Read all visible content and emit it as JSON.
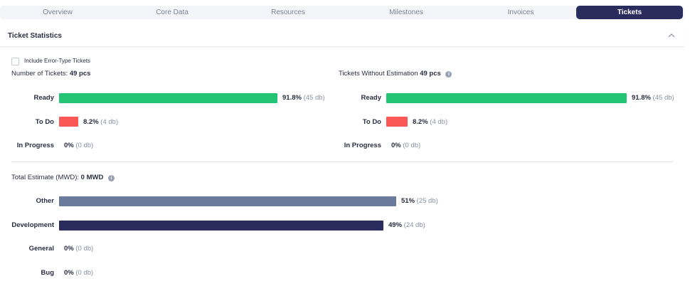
{
  "tabs": [
    {
      "label": "Overview",
      "active": false
    },
    {
      "label": "Core Data",
      "active": false
    },
    {
      "label": "Resources",
      "active": false
    },
    {
      "label": "Milestones",
      "active": false
    },
    {
      "label": "Invoices",
      "active": false
    },
    {
      "label": "Tickets",
      "active": true
    }
  ],
  "section": {
    "title": "Ticket Statistics",
    "collapse_icon": "chevron-up-icon"
  },
  "filter": {
    "checkbox_label": "Include Error-Type Tickets",
    "checked": false
  },
  "tickets": {
    "heading_label": "Number of Tickets:",
    "heading_value": "49 pcs",
    "rows": [
      {
        "label": "Ready",
        "pct": "91.8%",
        "count": "(45 db)",
        "fraction": 0.918,
        "color": "#22c473"
      },
      {
        "label": "To Do",
        "pct": "8.2%",
        "count": "(4 db)",
        "fraction": 0.082,
        "color": "#fb5757"
      },
      {
        "label": "In Progress",
        "pct": "0%",
        "count": "(0 db)",
        "fraction": 0,
        "color": "#22c473"
      }
    ]
  },
  "without_estimation": {
    "heading_label": "Tickets Without Estimation",
    "heading_value": "49 pcs",
    "info_icon": "info-icon",
    "rows": [
      {
        "label": "Ready",
        "pct": "91.8%",
        "count": "(45 db)",
        "fraction": 0.918,
        "color": "#22c473"
      },
      {
        "label": "To Do",
        "pct": "8.2%",
        "count": "(4 db)",
        "fraction": 0.082,
        "color": "#fb5757"
      },
      {
        "label": "In Progress",
        "pct": "0%",
        "count": "(0 db)",
        "fraction": 0,
        "color": "#22c473"
      }
    ]
  },
  "estimate": {
    "heading_label": "Total Estimate (MWD):",
    "heading_value": "0 MWD",
    "info_icon": "info-icon",
    "rows": [
      {
        "label": "Other",
        "pct": "51%",
        "count": "(25 db)",
        "fraction": 0.51,
        "color": "#6a7a9a"
      },
      {
        "label": "Development",
        "pct": "49%",
        "count": "(24 db)",
        "fraction": 0.49,
        "color": "#2a2c5e"
      },
      {
        "label": "General",
        "pct": "0%",
        "count": "(0 db)",
        "fraction": 0,
        "color": "#6a7a9a"
      },
      {
        "label": "Bug",
        "pct": "0%",
        "count": "(0 db)",
        "fraction": 0,
        "color": "#6a7a9a"
      }
    ]
  }
}
